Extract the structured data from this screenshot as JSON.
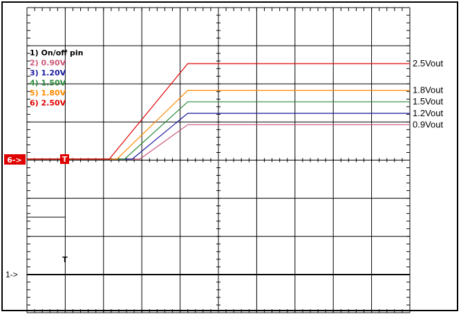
{
  "chart_data": {
    "type": "line",
    "title": "",
    "xlabel": "",
    "ylabel": "",
    "grid": true,
    "x_divisions": 10,
    "y_divisions": 8,
    "x": [
      0,
      2.2,
      4.2,
      10
    ],
    "series": [
      {
        "name": "On/off pin",
        "color": "#000000",
        "values": [
          -3.0,
          0,
          0,
          0
        ],
        "step": true
      },
      {
        "name": "0.90V",
        "color": "#cc5577",
        "values": [
          0,
          0,
          0.9,
          0.9
        ],
        "start": 2.95
      },
      {
        "name": "1.20V",
        "color": "#1a1aa0",
        "values": [
          0,
          0,
          1.2,
          1.2
        ],
        "start": 2.75
      },
      {
        "name": "1.50V",
        "color": "#2a8a3a",
        "values": [
          0,
          0,
          1.5,
          1.5
        ],
        "start": 2.55
      },
      {
        "name": "1.80V",
        "color": "#ff8800",
        "values": [
          0,
          0,
          1.8,
          1.8
        ],
        "start": 2.35
      },
      {
        "name": "2.50V",
        "color": "#e00000",
        "values": [
          0,
          0,
          2.5,
          2.5
        ],
        "start": 2.15
      }
    ],
    "legend": {
      "position": "top-left",
      "entries": [
        {
          "text": "1) On/off pin",
          "color": "#000000"
        },
        {
          "text": "2) 0.90V",
          "color": "#cc5577"
        },
        {
          "text": "3) 1.20V",
          "color": "#1a1aa0"
        },
        {
          "text": "4) 1.50V",
          "color": "#2a8a3a"
        },
        {
          "text": "5) 1.80V",
          "color": "#ff8800"
        },
        {
          "text": "6) 2.50V",
          "color": "#e00000"
        }
      ]
    },
    "right_labels": [
      {
        "text": "2.5Vout",
        "value": 2.5
      },
      {
        "text": "1.8Vout",
        "value": 1.8
      },
      {
        "text": "1.5Vout",
        "value": 1.5
      },
      {
        "text": "1.2Vout",
        "value": 1.2
      },
      {
        "text": "0.9Vout",
        "value": 0.9
      }
    ],
    "markers": {
      "ch6_label": "6->",
      "ch1_label": "1->",
      "trigger_label": "T",
      "trigger_color": "#e00000"
    }
  }
}
